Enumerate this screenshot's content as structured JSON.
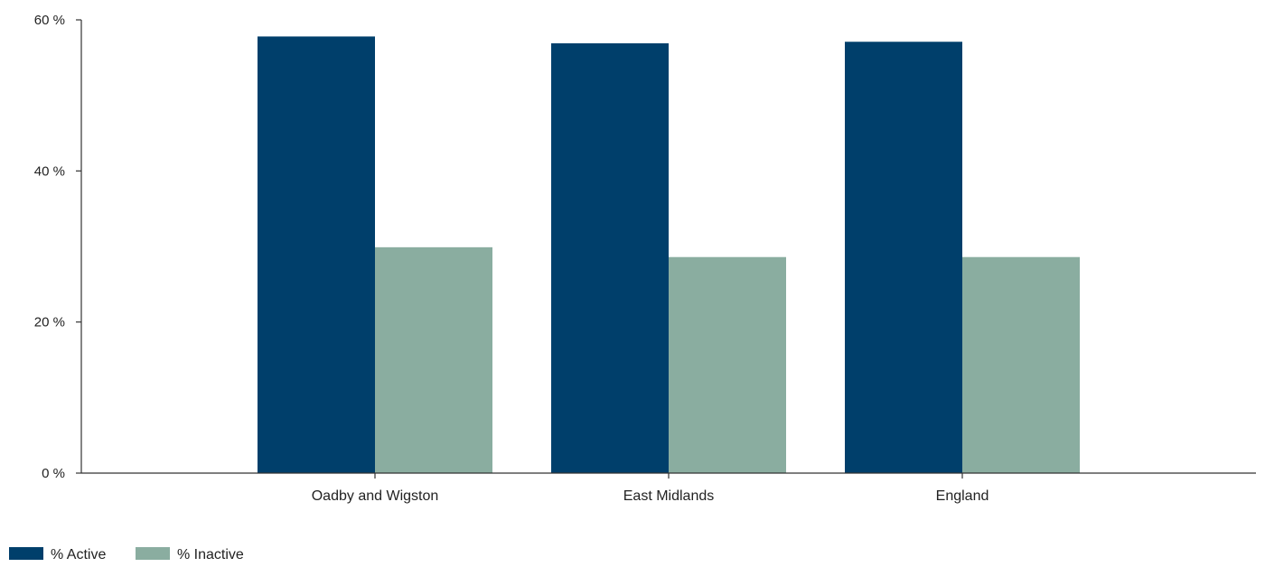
{
  "chart_data": {
    "type": "bar",
    "title": "",
    "xlabel": "",
    "ylabel": "",
    "categories": [
      "Oadby and Wigston",
      "East Midlands",
      "England"
    ],
    "series": [
      {
        "name": "% Active",
        "values": [
          57.8,
          56.9,
          57.1
        ],
        "color": "#003f6b"
      },
      {
        "name": "% Inactive",
        "values": [
          29.9,
          28.6,
          28.6
        ],
        "color": "#8aada0"
      }
    ],
    "ylim": [
      0,
      60
    ],
    "y_ticks": [
      0,
      20,
      40,
      60
    ],
    "y_tick_labels": [
      "0 %",
      "20 %",
      "40 %",
      "60 %"
    ],
    "grid": false,
    "legend_position": "bottom-left"
  }
}
